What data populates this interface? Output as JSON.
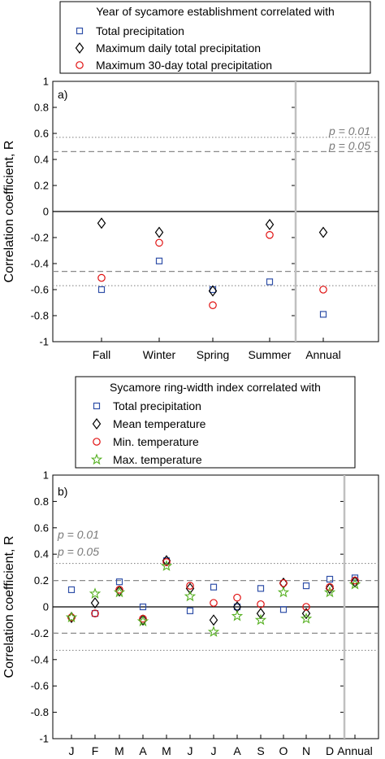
{
  "colors": {
    "total_precipitation": "#2f4fa8",
    "diamond_series": "#000000",
    "circle_series": "#e01010",
    "max_temperature": "#55b020",
    "significance_lines": "#8a8a8a",
    "annual_divider": "#c0c0c0"
  },
  "chart_data": [
    {
      "type": "scatter",
      "panel_label": "a)",
      "legend_title": "Year of sycamore establishment correlated with",
      "legend_position": "above plot",
      "ylabel": "Correlation coefficient, R",
      "ylim": [
        -1,
        1
      ],
      "yticks": [
        "1",
        "0.8",
        "0.6",
        "0.4",
        "0.2",
        "0",
        "-0.2",
        "-0.4",
        "-0.6",
        "-0.8",
        "-1"
      ],
      "categories": [
        "Fall",
        "Winter",
        "Spring",
        "Summer",
        "Annual"
      ],
      "series": [
        {
          "name": "Total precipitation",
          "marker": "square",
          "values": [
            -0.6,
            -0.38,
            -0.6,
            -0.54,
            -0.79
          ]
        },
        {
          "name": "Maximum daily total precipitation",
          "marker": "diamond",
          "values": [
            -0.09,
            -0.16,
            -0.61,
            -0.1,
            -0.16
          ]
        },
        {
          "name": "Maximum 30-day total precipitation",
          "marker": "circle",
          "values": [
            -0.51,
            -0.24,
            -0.72,
            -0.18,
            -0.6
          ]
        }
      ],
      "significance": [
        {
          "label": "p = 0.01",
          "value": 0.57,
          "style": "dotted"
        },
        {
          "label": "p = 0.05",
          "value": 0.46,
          "style": "dashed"
        }
      ],
      "zero_line": true,
      "grid": false
    },
    {
      "type": "scatter",
      "panel_label": "b)",
      "legend_title": "Sycamore ring-width index correlated with",
      "legend_position": "above plot",
      "ylabel": "Correlation coefficient, R",
      "ylim": [
        -1,
        1
      ],
      "yticks": [
        "1",
        "0.8",
        "0.6",
        "0.4",
        "0.2",
        "0",
        "-0.2",
        "-0.4",
        "-0.6",
        "-0.8",
        "-1"
      ],
      "categories": [
        "J",
        "F",
        "M",
        "A",
        "M",
        "J",
        "J",
        "A",
        "S",
        "O",
        "N",
        "D",
        "Annual"
      ],
      "series": [
        {
          "name": "Total precipitation",
          "marker": "square",
          "values": [
            0.13,
            -0.05,
            0.19,
            0.0,
            0.35,
            -0.03,
            0.15,
            0.0,
            0.14,
            -0.02,
            0.16,
            0.21,
            0.22
          ]
        },
        {
          "name": "Mean temperature",
          "marker": "diamond",
          "values": [
            -0.08,
            0.03,
            0.12,
            -0.1,
            0.35,
            0.14,
            -0.1,
            0.0,
            -0.05,
            0.18,
            -0.05,
            0.14,
            0.19
          ]
        },
        {
          "name": "Min. temperature",
          "marker": "circle",
          "values": [
            -0.08,
            -0.05,
            0.13,
            -0.09,
            0.34,
            0.16,
            0.03,
            0.07,
            0.02,
            0.18,
            0.0,
            0.15,
            0.2
          ]
        },
        {
          "name": "Max. temperature",
          "marker": "star",
          "values": [
            -0.08,
            0.1,
            0.11,
            -0.11,
            0.31,
            0.08,
            -0.19,
            -0.07,
            -0.1,
            0.11,
            -0.09,
            0.11,
            0.17
          ]
        }
      ],
      "significance": [
        {
          "label": "p = 0.01",
          "value": 0.33,
          "style": "dotted"
        },
        {
          "label": "p = 0.05",
          "value": 0.2,
          "style": "dashed"
        }
      ],
      "zero_line": true,
      "grid": false
    }
  ]
}
